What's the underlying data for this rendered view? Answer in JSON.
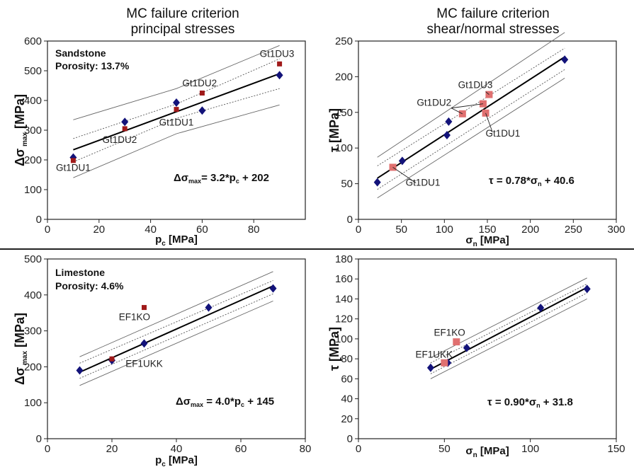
{
  "headers": {
    "left": [
      "MC failure criterion",
      "principal stresses"
    ],
    "right": [
      "MC failure criterion",
      "shear/normal stresses"
    ]
  },
  "colors": {
    "diamond": "#13137a",
    "square_dark": "#a01a1a",
    "square_light": "#e07070",
    "fit": "#000000",
    "band_inner": "#555555",
    "band_outer": "#666666"
  },
  "chart_data": [
    {
      "id": "p1",
      "type": "scatter",
      "xlabel": {
        "main": "p",
        "sub": "c",
        "tail": " [MPa]"
      },
      "ylabel": {
        "main": "Δσ",
        "sub": "max",
        "tail": " [MPa]"
      },
      "xlim": [
        0,
        100
      ],
      "ylim": [
        0,
        600
      ],
      "xticks": [
        0,
        20,
        40,
        60,
        80
      ],
      "yticks": [
        0,
        100,
        200,
        300,
        400,
        500,
        600
      ],
      "box_text": [
        "Sandstone",
        "Porosity: 13.7%"
      ],
      "equation": {
        "parts": [
          [
            "Δσ",
            ""
          ],
          [
            "max",
            "sub"
          ],
          [
            "= 3.2*p",
            ""
          ],
          [
            "c",
            "sub"
          ],
          [
            " + 202",
            ""
          ]
        ]
      },
      "fit": {
        "slope": 3.2,
        "intercept": 202,
        "x": [
          10,
          90
        ]
      },
      "band_inner": {
        "lo": [
          [
            10,
            193
          ],
          [
            50,
            340
          ],
          [
            90,
            440
          ]
        ],
        "hi": [
          [
            10,
            272
          ],
          [
            50,
            388
          ],
          [
            90,
            540
          ]
        ]
      },
      "band_outer": {
        "lo": [
          [
            10,
            140
          ],
          [
            50,
            288
          ],
          [
            90,
            385
          ]
        ],
        "hi": [
          [
            10,
            335
          ],
          [
            50,
            440
          ],
          [
            90,
            585
          ]
        ]
      },
      "series": [
        {
          "marker": "diamond",
          "color": "#13137a",
          "points": [
            [
              10,
              208
            ],
            [
              30,
              328
            ],
            [
              50,
              393
            ],
            [
              60,
              366
            ],
            [
              90,
              485
            ]
          ]
        },
        {
          "marker": "square",
          "color": "#a01a1a",
          "points": [
            [
              10,
              198
            ],
            [
              30,
              305
            ],
            [
              50,
              370
            ],
            [
              60,
              425
            ],
            [
              90,
              523
            ]
          ]
        }
      ],
      "annotations": [
        {
          "text": "Gt1DU1",
          "x": 10,
          "y": 163
        },
        {
          "text": "Gt1DU2",
          "x": 28,
          "y": 257
        },
        {
          "text": "Gt1DU1",
          "x": 50,
          "y": 315
        },
        {
          "text": "Gt1DU2",
          "x": 59,
          "y": 448
        },
        {
          "text": "Gt1DU3",
          "x": 89,
          "y": 547
        }
      ]
    },
    {
      "id": "p2",
      "type": "scatter",
      "xlabel": {
        "main": "σ",
        "sub": "n",
        "tail": " [MPa]"
      },
      "ylabel": {
        "main": "τ",
        "sub": "",
        "tail": " [MPa]"
      },
      "xlim": [
        0,
        300
      ],
      "ylim": [
        0,
        250
      ],
      "xticks": [
        0,
        50,
        100,
        150,
        200,
        250,
        300
      ],
      "yticks": [
        0,
        50,
        100,
        150,
        200,
        250
      ],
      "equation": {
        "parts": [
          [
            "τ",
            ""
          ],
          [
            " = 0.78*σ",
            ""
          ],
          [
            "n",
            "sub"
          ],
          [
            " + 40.6",
            ""
          ]
        ]
      },
      "fit": {
        "slope": 0.78,
        "intercept": 40.6,
        "x": [
          22,
          240
        ]
      },
      "band_inner": {
        "lo": [
          [
            22,
            42
          ],
          [
            240,
            210
          ]
        ],
        "hi": [
          [
            22,
            75
          ],
          [
            240,
            240
          ]
        ]
      },
      "band_outer": {
        "lo": [
          [
            22,
            30
          ],
          [
            240,
            198
          ]
        ],
        "hi": [
          [
            22,
            87
          ],
          [
            240,
            262
          ]
        ]
      },
      "series": [
        {
          "marker": "diamond",
          "color": "#13137a",
          "points": [
            [
              22,
              52
            ],
            [
              51,
              82
            ],
            [
              103,
              118
            ],
            [
              105,
              137
            ],
            [
              240,
              224
            ]
          ]
        },
        {
          "marker": "square",
          "color": "#e07070",
          "points": [
            [
              40,
              73
            ],
            [
              121,
              148
            ],
            [
              145,
              162
            ],
            [
              148,
              149
            ],
            [
              152,
              175
            ]
          ]
        }
      ],
      "annotations": [
        {
          "text": "Gt1DU1",
          "x": 75,
          "y": 47
        },
        {
          "text": "Gt1DU2",
          "x": 88,
          "y": 159
        },
        {
          "text": "Gt1DU3",
          "x": 136,
          "y": 184
        },
        {
          "text": "Gt1DU1",
          "x": 168,
          "y": 116
        }
      ]
    },
    {
      "id": "p3",
      "type": "scatter",
      "xlabel": {
        "main": "p",
        "sub": "c",
        "tail": " [MPa]"
      },
      "ylabel": {
        "main": "Δσ",
        "sub": "max",
        "tail": " [MPa]"
      },
      "xlim": [
        0,
        80
      ],
      "ylim": [
        0,
        500
      ],
      "xticks": [
        0,
        20,
        40,
        60,
        80
      ],
      "yticks": [
        0,
        100,
        200,
        300,
        400,
        500
      ],
      "box_text": [
        "Limestone",
        "Porosity: 4.6%"
      ],
      "equation": {
        "parts": [
          [
            "Δσ",
            ""
          ],
          [
            "max",
            "sub"
          ],
          [
            " = 4.0*p",
            ""
          ],
          [
            "c",
            "sub"
          ],
          [
            " + 145",
            ""
          ]
        ]
      },
      "fit": {
        "slope": 4.0,
        "intercept": 145,
        "x": [
          10,
          70
        ]
      },
      "band_inner": {
        "lo": [
          [
            10,
            168
          ],
          [
            70,
            403
          ]
        ],
        "hi": [
          [
            10,
            210
          ],
          [
            70,
            440
          ]
        ]
      },
      "band_outer": {
        "lo": [
          [
            10,
            148
          ],
          [
            70,
            383
          ]
        ],
        "hi": [
          [
            10,
            228
          ],
          [
            70,
            465
          ]
        ]
      },
      "series": [
        {
          "marker": "diamond",
          "color": "#13137a",
          "points": [
            [
              10,
              190
            ],
            [
              20,
              218
            ],
            [
              30,
              265
            ],
            [
              50,
              365
            ],
            [
              70,
              418
            ]
          ]
        },
        {
          "marker": "square",
          "color": "#a01a1a",
          "points": [
            [
              20,
              222
            ],
            [
              30,
              365
            ]
          ]
        }
      ],
      "annotations": [
        {
          "text": "EF1KO",
          "x": 27,
          "y": 330
        },
        {
          "text": "EF1UKK",
          "x": 30,
          "y": 200
        }
      ]
    },
    {
      "id": "p4",
      "type": "scatter",
      "xlabel": {
        "main": "σ",
        "sub": "n",
        "tail": " [MPa]"
      },
      "ylabel": {
        "main": "τ",
        "sub": "",
        "tail": " [MPa]"
      },
      "xlim": [
        0,
        150
      ],
      "ylim": [
        0,
        180
      ],
      "xticks": [
        0,
        50,
        100,
        150
      ],
      "yticks": [
        0,
        20,
        40,
        60,
        80,
        100,
        120,
        140,
        160,
        180
      ],
      "equation": {
        "parts": [
          [
            "τ",
            ""
          ],
          [
            " = 0.90*σ",
            ""
          ],
          [
            "n",
            "sub"
          ],
          [
            " + 31.8",
            ""
          ]
        ]
      },
      "fit": {
        "slope": 0.9,
        "intercept": 31.8,
        "x": [
          42,
          133
        ]
      },
      "band_inner": {
        "lo": [
          [
            42,
            65
          ],
          [
            133,
            146
          ]
        ],
        "hi": [
          [
            42,
            76
          ],
          [
            133,
            155
          ]
        ]
      },
      "band_outer": {
        "lo": [
          [
            42,
            60
          ],
          [
            133,
            140
          ]
        ],
        "hi": [
          [
            42,
            81
          ],
          [
            133,
            161
          ]
        ]
      },
      "series": [
        {
          "marker": "diamond",
          "color": "#13137a",
          "points": [
            [
              42,
              71
            ],
            [
              52,
              76
            ],
            [
              63,
              91
            ],
            [
              106,
              131
            ],
            [
              133,
              150
            ]
          ]
        },
        {
          "marker": "square",
          "color": "#e07070",
          "points": [
            [
              50,
              76
            ],
            [
              57,
              97
            ]
          ]
        }
      ],
      "annotations": [
        {
          "text": "EF1KO",
          "x": 53,
          "y": 103
        },
        {
          "text": "EF1UKK",
          "x": 44,
          "y": 81
        }
      ]
    }
  ]
}
